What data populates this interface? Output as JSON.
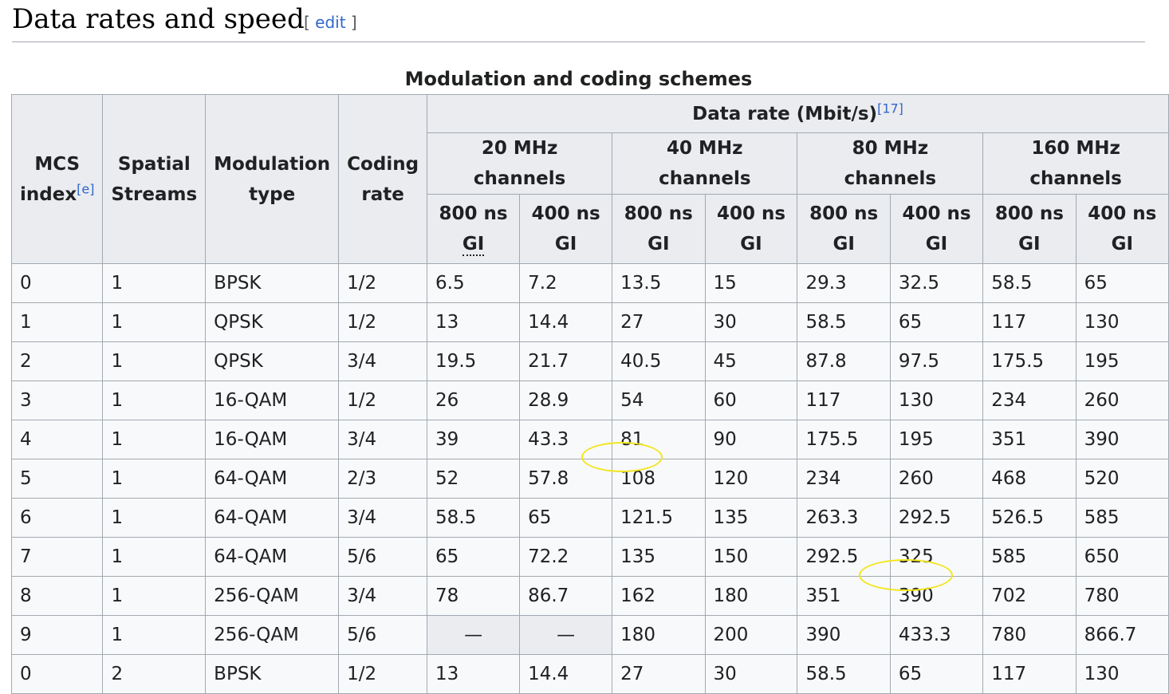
{
  "heading": {
    "title": "Data rates and speed",
    "edit_open": "[ ",
    "edit_label": "edit",
    "edit_close": " ]"
  },
  "table": {
    "caption": "Modulation and coding schemes",
    "headers": {
      "mcs_l1": "MCS",
      "mcs_l2": "index",
      "mcs_note": "[e]",
      "streams_l1": "Spatial",
      "streams_l2": "Streams",
      "mod_l1": "Modulation",
      "mod_l2": "type",
      "rate_l1": "Coding",
      "rate_l2": "rate",
      "data_rate": "Data rate (Mbit/s)",
      "data_rate_note": "[17]",
      "channels": [
        "20 MHz channels",
        "40 MHz channels",
        "80 MHz channels",
        "160 MHz channels"
      ],
      "gi_800_l1": "800 ns",
      "gi_400_l1": "400 ns",
      "gi_l2": "GI"
    },
    "rows": [
      [
        "0",
        "1",
        "BPSK",
        "1/2",
        "6.5",
        "7.2",
        "13.5",
        "15",
        "29.3",
        "32.5",
        "58.5",
        "65"
      ],
      [
        "1",
        "1",
        "QPSK",
        "1/2",
        "13",
        "14.4",
        "27",
        "30",
        "58.5",
        "65",
        "117",
        "130"
      ],
      [
        "2",
        "1",
        "QPSK",
        "3/4",
        "19.5",
        "21.7",
        "40.5",
        "45",
        "87.8",
        "97.5",
        "175.5",
        "195"
      ],
      [
        "3",
        "1",
        "16-QAM",
        "1/2",
        "26",
        "28.9",
        "54",
        "60",
        "117",
        "130",
        "234",
        "260"
      ],
      [
        "4",
        "1",
        "16-QAM",
        "3/4",
        "39",
        "43.3",
        "81",
        "90",
        "175.5",
        "195",
        "351",
        "390"
      ],
      [
        "5",
        "1",
        "64-QAM",
        "2/3",
        "52",
        "57.8",
        "108",
        "120",
        "234",
        "260",
        "468",
        "520"
      ],
      [
        "6",
        "1",
        "64-QAM",
        "3/4",
        "58.5",
        "65",
        "121.5",
        "135",
        "263.3",
        "292.5",
        "526.5",
        "585"
      ],
      [
        "7",
        "1",
        "64-QAM",
        "5/6",
        "65",
        "72.2",
        "135",
        "150",
        "292.5",
        "325",
        "585",
        "650"
      ],
      [
        "8",
        "1",
        "256-QAM",
        "3/4",
        "78",
        "86.7",
        "162",
        "180",
        "351",
        "390",
        "702",
        "780"
      ],
      [
        "9",
        "1",
        "256-QAM",
        "5/6",
        "—",
        "—",
        "180",
        "200",
        "390",
        "433.3",
        "780",
        "866.7"
      ],
      [
        "0",
        "2",
        "BPSK",
        "1/2",
        "13",
        "14.4",
        "27",
        "30",
        "58.5",
        "65",
        "117",
        "130"
      ]
    ],
    "na_value": "—"
  },
  "annotations": {
    "color": "#f2e61e",
    "highlighted": [
      "108",
      "390"
    ]
  }
}
